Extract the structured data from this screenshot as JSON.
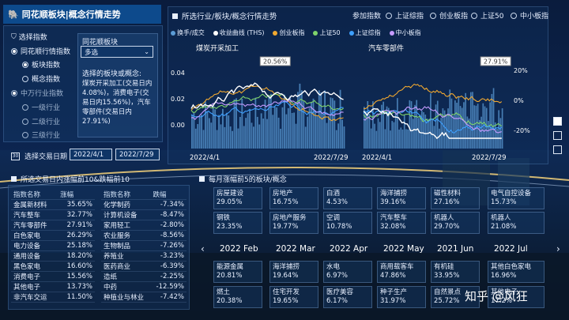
{
  "app_title": "同花顺板块|概念行情走势",
  "left_panel": {
    "section_title": "选择指数",
    "ths_group": "同花顺行情指数",
    "ths_items": [
      "板块指数",
      "概念指数"
    ],
    "zx_group": "中万行业指数",
    "zx_items": [
      "一级行业",
      "二级行业",
      "三级行业"
    ],
    "board_label": "同花顺板块",
    "board_select_value": "多选",
    "selected_info_label": "选择的板块或概念:",
    "selected_info_text": "煤炭开采加工(交易日内4.08%)，消费电子(交易日内15.56%)，汽车零部件(交易日内27.91%)",
    "date_label": "选择交易日期",
    "date_start": "2022/4/1",
    "date_end": "2022/7/29"
  },
  "chart_panel": {
    "title": "所选行业/板块/概念行情走势",
    "index_label": "参加指数",
    "index_options": [
      "上证综指",
      "创业板指",
      "上证50",
      "中小板指"
    ],
    "index_selected": "上证综指"
  },
  "chart_data": [
    {
      "type": "line",
      "title": "煤炭开采加工",
      "legend": [
        "换手/成交",
        "收益曲线 (THS)",
        "创业板指",
        "上证50",
        "上证综指",
        "中小板指"
      ],
      "x_start": "2022/4/1",
      "x_end": "2022/7/29",
      "y_ticks_left": [
        "0.04",
        "0.02",
        "0.00"
      ],
      "peak_label": "20.56%"
    },
    {
      "type": "line",
      "title": "汽车零部件",
      "x_start": "2022/4/1",
      "x_end": "2022/7/29",
      "y_ticks_right": [
        "20%",
        "0%",
        "-20%"
      ],
      "peak_label": "27.91%"
    }
  ],
  "legend_colors": {
    "换手/成交": "#5b9bd5",
    "收益曲线 (THS)": "#ffffff",
    "创业板指": "#f0a830",
    "上证50": "#7fd36b",
    "上证综指": "#3ea0ff",
    "中小板指": "#c59bff"
  },
  "top_table": {
    "title": "所选交易日内涨幅前10&跌幅前10",
    "up_header": [
      "指数名称",
      "涨幅"
    ],
    "up_rows": [
      [
        "金属新材料",
        "35.65%"
      ],
      [
        "汽车整车",
        "32.77%"
      ],
      [
        "汽车零部件",
        "27.91%"
      ],
      [
        "白色家电",
        "26.29%"
      ],
      [
        "电力设备",
        "25.18%"
      ],
      [
        "通用设备",
        "18.20%"
      ],
      [
        "黑色家电",
        "16.60%"
      ],
      [
        "消费电子",
        "15.56%"
      ],
      [
        "其他电子",
        "13.73%"
      ],
      [
        "非汽车交运",
        "11.50%"
      ]
    ],
    "down_header": [
      "指数名称",
      "跌幅"
    ],
    "down_rows": [
      [
        "化学制药",
        "-7.34%"
      ],
      [
        "计算机设备",
        "-8.47%"
      ],
      [
        "家用轻工",
        "-2.80%"
      ],
      [
        "农业服务",
        "-8.56%"
      ],
      [
        "生物制品",
        "-7.26%"
      ],
      [
        "养殖业",
        "-3.23%"
      ],
      [
        "医药商业",
        "-6.39%"
      ],
      [
        "造纸",
        "-2.25%"
      ],
      [
        "中药",
        "-12.59%"
      ],
      [
        "种植业与林业",
        "-7.42%"
      ]
    ]
  },
  "monthly": {
    "title": "每月涨幅前5的板块/概念",
    "months": [
      "2022 Feb",
      "2022 Mar",
      "2022 Apr",
      "2022 May",
      "2021 Jun",
      "2022 Jul"
    ],
    "cells": [
      [
        [
          "房屋建设",
          "29.05%"
        ],
        [
          "钢铁",
          "23.35%"
        ],
        [
          "",
          ""
        ],
        [
          "能源金属",
          "20.81%"
        ],
        [
          "燃土",
          "20.38%"
        ]
      ],
      [
        [
          "房地产",
          "16.75%"
        ],
        [
          "房地产服务",
          "19.77%"
        ],
        [
          "",
          ""
        ],
        [
          "海洋捕捞",
          "19.64%"
        ],
        [
          "住宅开发",
          "19.65%"
        ]
      ],
      [
        [
          "白酒",
          "4.53%"
        ],
        [
          "空调",
          "10.78%"
        ],
        [
          "",
          ""
        ],
        [
          "水电",
          "6.97%"
        ],
        [
          "医疗美容",
          "6.17%"
        ]
      ],
      [
        [
          "海洋捕捞",
          "39.16%"
        ],
        [
          "汽车整车",
          "32.08%"
        ],
        [
          "",
          ""
        ],
        [
          "商用载客车",
          "47.86%"
        ],
        [
          "种子生产",
          "31.97%"
        ]
      ],
      [
        [
          "磁性材料",
          "27.16%"
        ],
        [
          "机器人",
          "29.70%"
        ],
        [
          "",
          ""
        ],
        [
          "有机硅",
          "33.95%"
        ],
        [
          "自然景点",
          "25.72%"
        ]
      ],
      [
        [
          "电气自控设备",
          "15.73%"
        ],
        [
          "机器人",
          "21.08%"
        ],
        [
          "",
          ""
        ],
        [
          "其他白色家电",
          "16.96%"
        ],
        [
          "其他电子",
          "17.2%"
        ]
      ]
    ]
  },
  "watermark": "知乎 @风狂"
}
